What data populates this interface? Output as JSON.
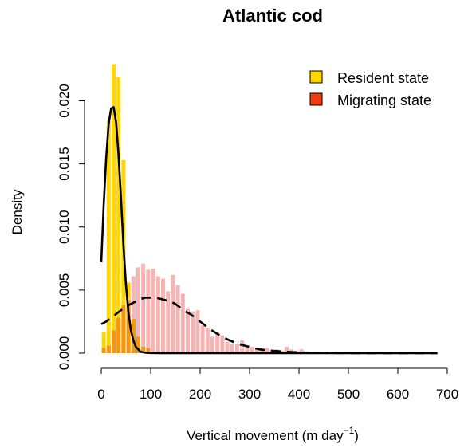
{
  "chart_data": {
    "type": "bar",
    "title": "Atlantic cod",
    "xlabel": "Vertical movement (m day",
    "xlabel_sup": "−1",
    "xlabel_close": ")",
    "ylabel": "Density",
    "xlim": [
      0,
      700
    ],
    "ylim": [
      0,
      0.023
    ],
    "x_ticks": [
      0,
      100,
      200,
      300,
      400,
      500,
      600,
      700
    ],
    "y_ticks": [
      0.0,
      0.005,
      0.01,
      0.015,
      0.02
    ],
    "y_tick_labels": [
      "0.000",
      "0.005",
      "0.010",
      "0.015",
      "0.020"
    ],
    "grid": false,
    "legend_position": "top-right",
    "bin_width": 10,
    "colors": {
      "resident": "#FFD700",
      "migrating": "#F03C14",
      "migrating_hist": "#F7B4B4",
      "overlap": "#F7950F",
      "curves": "#000000"
    },
    "series": [
      {
        "name": "Resident state",
        "kind": "histogram",
        "bin_starts": [
          0,
          10,
          20,
          30,
          40,
          50,
          60,
          70,
          80,
          90,
          100
        ],
        "values": [
          0.0017,
          0.0184,
          0.0229,
          0.0219,
          0.0153,
          0.0056,
          0.0027,
          0.0013,
          0.0005,
          0.0004,
          0.0001
        ]
      },
      {
        "name": "Migrating state",
        "kind": "histogram",
        "bin_starts": [
          0,
          10,
          20,
          30,
          40,
          50,
          60,
          70,
          80,
          90,
          100,
          110,
          120,
          130,
          140,
          150,
          160,
          170,
          180,
          190,
          200,
          210,
          220,
          230,
          240,
          250,
          260,
          270,
          280,
          290,
          300,
          310,
          320,
          330,
          340,
          350,
          360,
          370,
          380,
          390,
          400,
          410
        ],
        "values": [
          0.0004,
          0.0006,
          0.0018,
          0.0028,
          0.0038,
          0.0042,
          0.0061,
          0.0068,
          0.0071,
          0.0066,
          0.0067,
          0.0061,
          0.0059,
          0.0049,
          0.0062,
          0.0054,
          0.0047,
          0.0035,
          0.0033,
          0.0034,
          0.0022,
          0.002,
          0.0013,
          0.0017,
          0.0014,
          0.0009,
          0.0007,
          0.0007,
          0.001,
          0.0006,
          0.0005,
          0.0004,
          0.0004,
          0.0004,
          0.0003,
          0.0003,
          0.0002,
          0.0005,
          0.0003,
          0.0002,
          0.0003,
          0.0001
        ]
      },
      {
        "name": "Resident state",
        "kind": "density",
        "style": "solid",
        "distribution": "gamma",
        "x": [
          0,
          5,
          10,
          15,
          20,
          25,
          30,
          35,
          40,
          45,
          50,
          55,
          60,
          65,
          70,
          75,
          80,
          90,
          100,
          120,
          150,
          200,
          300,
          400,
          500,
          600,
          680
        ],
        "y": [
          0.0072,
          0.0118,
          0.0155,
          0.0182,
          0.0194,
          0.0195,
          0.0183,
          0.0157,
          0.0122,
          0.0085,
          0.0054,
          0.0032,
          0.0018,
          0.001,
          0.0005,
          0.0003,
          0.0001,
          3e-05,
          1e-05,
          0,
          0,
          0,
          0,
          0,
          0,
          0,
          0
        ]
      },
      {
        "name": "Migrating state",
        "kind": "density",
        "style": "dashed",
        "distribution": "gamma",
        "x": [
          0,
          10,
          20,
          30,
          40,
          50,
          60,
          70,
          80,
          90,
          100,
          110,
          120,
          130,
          140,
          150,
          160,
          170,
          180,
          190,
          200,
          220,
          240,
          260,
          280,
          300,
          320,
          340,
          360,
          380,
          400,
          440,
          480,
          520,
          560,
          600,
          640,
          680
        ],
        "y": [
          0.0023,
          0.0025,
          0.0028,
          0.0031,
          0.0034,
          0.0037,
          0.0039,
          0.0041,
          0.0043,
          0.0044,
          0.0044,
          0.0044,
          0.0043,
          0.0042,
          0.0041,
          0.0039,
          0.0036,
          0.0033,
          0.0031,
          0.0028,
          0.0025,
          0.0019,
          0.0014,
          0.001,
          0.0007,
          0.0005,
          0.0003,
          0.0002,
          0.00015,
          0.0001,
          6e-05,
          3e-05,
          1e-05,
          0,
          0,
          0,
          0,
          0
        ]
      }
    ]
  }
}
